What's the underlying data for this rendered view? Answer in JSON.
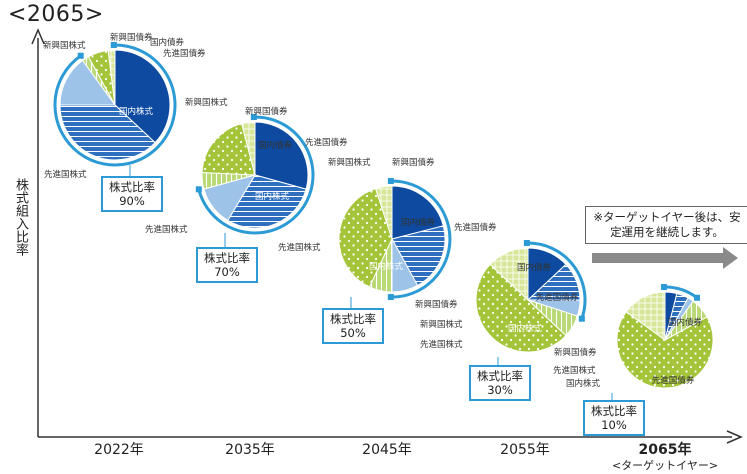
{
  "title": "<2065>",
  "ylabel": "株式組入比率",
  "note": "※ターゲットイヤー後は、安定運用を継続します。",
  "colors": {
    "domestic_stock": "#0d4aa0",
    "developed_stock": "#2f6fc0",
    "emerging_stock": "#9ec3e8",
    "domestic_bond": "#a4c43a",
    "developed_bond": "#d7e79a",
    "emerging_bond": "#b9d876",
    "frame": "#2c9bd5"
  },
  "chart_data": {
    "type": "pie",
    "ylabel": "株式組入比率",
    "ratio_label": "株式比率",
    "labels": {
      "domestic_stock": "国内株式",
      "developed_stock": "先進国株式",
      "emerging_stock": "新興国株式",
      "domestic_bond": "国内債券",
      "developed_bond": "先進国債券",
      "emerging_bond": "新興国債券"
    },
    "pies": [
      {
        "year": "2022年",
        "year_sub": "",
        "stock_ratio": "90%",
        "slices": [
          {
            "key": "domestic_stock",
            "value": 37
          },
          {
            "key": "developed_stock",
            "value": 38
          },
          {
            "key": "emerging_stock",
            "value": 15
          },
          {
            "key": "emerging_bond",
            "value": 2
          },
          {
            "key": "domestic_bond",
            "value": 6
          },
          {
            "key": "developed_bond",
            "value": 2
          }
        ]
      },
      {
        "year": "2035年",
        "year_sub": "",
        "stock_ratio": "70%",
        "slices": [
          {
            "key": "domestic_stock",
            "value": 29
          },
          {
            "key": "developed_stock",
            "value": 29
          },
          {
            "key": "emerging_stock",
            "value": 12
          },
          {
            "key": "emerging_bond",
            "value": 5
          },
          {
            "key": "domestic_bond",
            "value": 20
          },
          {
            "key": "developed_bond",
            "value": 4
          }
        ]
      },
      {
        "year": "2045年",
        "year_sub": "",
        "stock_ratio": "50%",
        "slices": [
          {
            "key": "domestic_stock",
            "value": 21
          },
          {
            "key": "developed_stock",
            "value": 21
          },
          {
            "key": "emerging_stock",
            "value": 8
          },
          {
            "key": "emerging_bond",
            "value": 7
          },
          {
            "key": "domestic_bond",
            "value": 38
          },
          {
            "key": "developed_bond",
            "value": 5
          }
        ]
      },
      {
        "year": "2055年",
        "year_sub": "",
        "stock_ratio": "30%",
        "slices": [
          {
            "key": "domestic_stock",
            "value": 13
          },
          {
            "key": "developed_stock",
            "value": 12
          },
          {
            "key": "emerging_stock",
            "value": 5
          },
          {
            "key": "emerging_bond",
            "value": 7
          },
          {
            "key": "domestic_bond",
            "value": 50
          },
          {
            "key": "developed_bond",
            "value": 13
          }
        ]
      },
      {
        "year": "2065年",
        "year_sub": "<ターゲットイヤー>",
        "stock_ratio": "10%",
        "slices": [
          {
            "key": "domestic_stock",
            "value": 4
          },
          {
            "key": "developed_stock",
            "value": 4
          },
          {
            "key": "emerging_stock",
            "value": 2
          },
          {
            "key": "emerging_bond",
            "value": 7
          },
          {
            "key": "domestic_bond",
            "value": 68
          },
          {
            "key": "developed_bond",
            "value": 15
          }
        ]
      }
    ]
  }
}
